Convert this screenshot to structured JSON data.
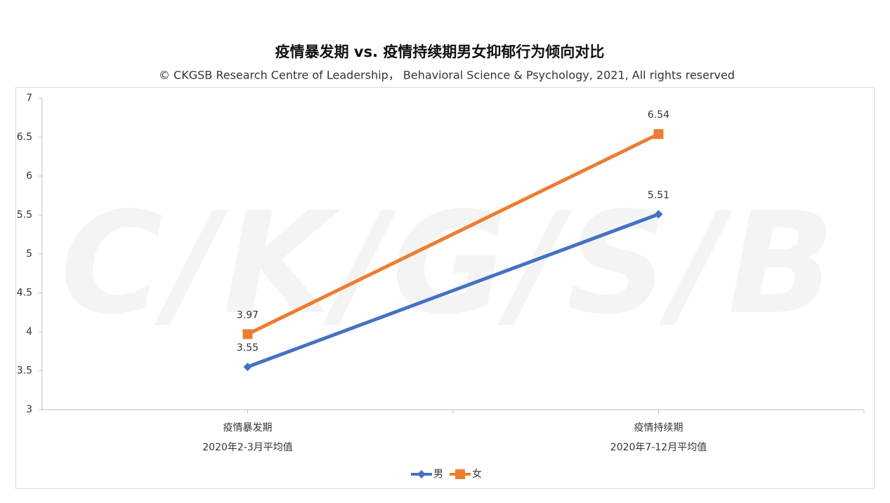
{
  "chart_data": {
    "type": "line",
    "title": "疫情暴发期 vs. 疫情持续期男女抑郁行为倾向对比",
    "subtitle": "© CKGSB Research Centre of Leadership， Behavioral Science & Psychology, 2021, All rights reserved",
    "watermark": "C/K/G/S/B",
    "categories": [
      [
        "疫情暴发期",
        "2020年2-3月平均值"
      ],
      [
        "疫情持续期",
        "2020年7-12月平均值"
      ]
    ],
    "series": [
      {
        "name": "男",
        "color": "#4472c4",
        "marker": "diamond",
        "values": [
          3.55,
          5.51
        ]
      },
      {
        "name": "女",
        "color": "#ed7d31",
        "marker": "square",
        "values": [
          3.97,
          6.54
        ]
      }
    ],
    "ylim": [
      3,
      7
    ],
    "yticks": [
      3,
      3.5,
      4,
      4.5,
      5,
      5.5,
      6,
      6.5,
      7
    ],
    "grid": false,
    "legend": "bottom"
  }
}
